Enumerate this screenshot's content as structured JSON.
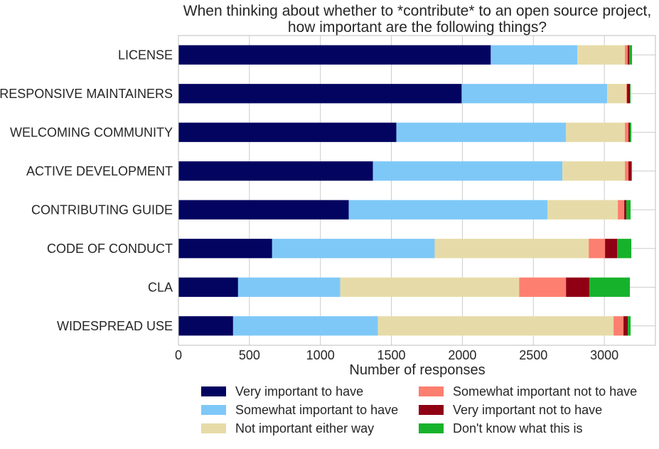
{
  "chart_data": {
    "type": "bar",
    "orientation": "horizontal",
    "stacked": true,
    "title": "When thinking about whether to *contribute* to an open source project,\nhow important are the following things?",
    "xlabel": "Number of responses",
    "ylabel": "",
    "xlim": [
      0,
      3360
    ],
    "xticks": [
      0,
      500,
      1000,
      1500,
      2000,
      2500,
      3000
    ],
    "grid": true,
    "legend_position": "bottom",
    "categories": [
      "LICENSE",
      "RESPONSIVE MAINTAINERS",
      "WELCOMING COMMUNITY",
      "ACTIVE DEVELOPMENT",
      "CONTRIBUTING GUIDE",
      "CODE OF CONDUCT",
      "CLA",
      "WIDESPREAD USE"
    ],
    "series": [
      {
        "name": "Very important to have",
        "color": "#020460",
        "values": [
          2200,
          1995,
          1535,
          1370,
          1200,
          660,
          420,
          385
        ]
      },
      {
        "name": "Somewhat important to have",
        "color": "#7ec8f7",
        "values": [
          610,
          1025,
          1195,
          1335,
          1400,
          1145,
          720,
          1020
        ]
      },
      {
        "name": "Not important either way",
        "color": "#e6dba8",
        "values": [
          335,
          135,
          415,
          440,
          495,
          1085,
          1260,
          1660
        ]
      },
      {
        "name": "Somewhat important not to have",
        "color": "#fd7f6f",
        "values": [
          20,
          5,
          25,
          25,
          45,
          115,
          330,
          70
        ]
      },
      {
        "name": "Very important not to have",
        "color": "#900014",
        "values": [
          10,
          20,
          10,
          20,
          15,
          85,
          165,
          30
        ]
      },
      {
        "name": "Don't know what this is",
        "color": "#17b22b",
        "values": [
          20,
          5,
          10,
          5,
          30,
          100,
          285,
          20
        ]
      }
    ]
  }
}
